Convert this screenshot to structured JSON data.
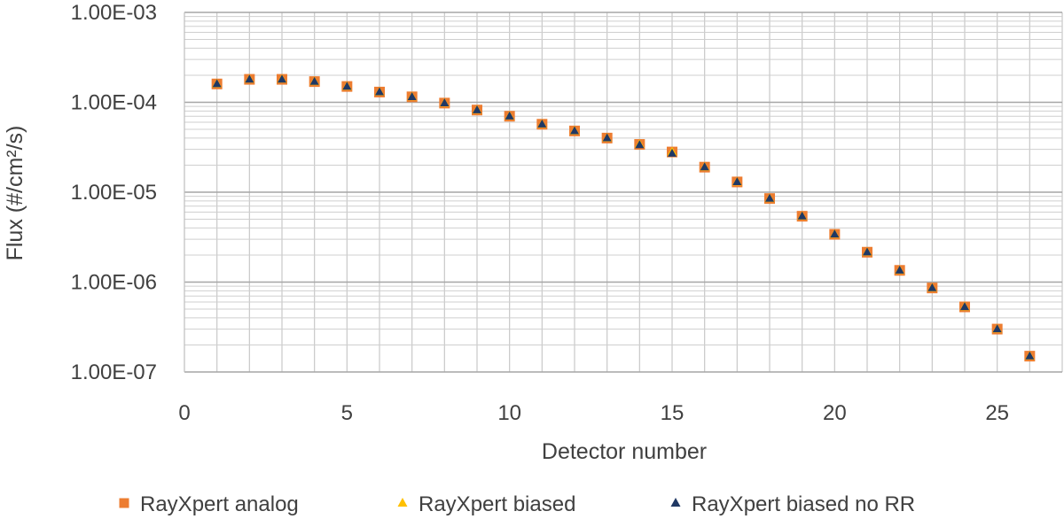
{
  "chart_data": {
    "type": "scatter",
    "xlabel": "Detector number",
    "ylabel": "Flux (#/cm²/s)",
    "xlim": [
      0,
      27
    ],
    "ylim": [
      1e-07,
      0.001
    ],
    "yscale": "log",
    "x_ticks": [
      "0",
      "5",
      "10",
      "15",
      "20",
      "25"
    ],
    "x_tick_values": [
      0,
      5,
      10,
      15,
      20,
      25
    ],
    "y_ticks": [
      "1.00E-07",
      "1.00E-06",
      "1.00E-05",
      "1.00E-04",
      "1.00E-03"
    ],
    "y_tick_values": [
      1e-07,
      1e-06,
      1e-05,
      0.0001,
      0.001
    ],
    "grid": true,
    "legend_position": "bottom",
    "x": [
      1,
      2,
      3,
      4,
      5,
      6,
      7,
      8,
      9,
      10,
      11,
      12,
      13,
      14,
      15,
      16,
      17,
      18,
      19,
      20,
      21,
      22,
      23,
      24,
      25,
      26
    ],
    "series": [
      {
        "name": "RayXpert analog",
        "marker": "square",
        "color": "#ED7D31",
        "values": [
          0.00016,
          0.00018,
          0.00018,
          0.00017,
          0.00015,
          0.00013,
          0.000115,
          9.8e-05,
          8.2e-05,
          7e-05,
          5.7e-05,
          4.8e-05,
          4e-05,
          3.4e-05,
          2.8e-05,
          1.9e-05,
          1.3e-05,
          8.5e-06,
          5.4e-06,
          3.4e-06,
          2.15e-06,
          1.35e-06,
          8.6e-07,
          5.3e-07,
          3e-07,
          1.5e-07
        ]
      },
      {
        "name": "RayXpert biased",
        "marker": "triangle",
        "color": "#FFC000",
        "values": [
          0.00016,
          0.00018,
          0.00018,
          0.00017,
          0.00015,
          0.00013,
          0.000115,
          9.8e-05,
          8.2e-05,
          7e-05,
          5.7e-05,
          4.8e-05,
          4e-05,
          3.4e-05,
          2.8e-05,
          1.9e-05,
          1.3e-05,
          8.5e-06,
          5.4e-06,
          3.4e-06,
          2.15e-06,
          1.35e-06,
          8.6e-07,
          5.3e-07,
          3e-07,
          1.5e-07
        ]
      },
      {
        "name": "RayXpert biased no RR",
        "marker": "triangle",
        "color": "#203864",
        "values": [
          0.00016,
          0.00018,
          0.00018,
          0.00017,
          0.00015,
          0.00013,
          0.000115,
          9.8e-05,
          8.2e-05,
          7e-05,
          5.7e-05,
          4.8e-05,
          4e-05,
          3.35e-05,
          2.7e-05,
          1.9e-05,
          1.3e-05,
          8.5e-06,
          5.4e-06,
          3.4e-06,
          2.15e-06,
          1.35e-06,
          8.6e-07,
          5.3e-07,
          3e-07,
          1.5e-07
        ]
      }
    ]
  }
}
